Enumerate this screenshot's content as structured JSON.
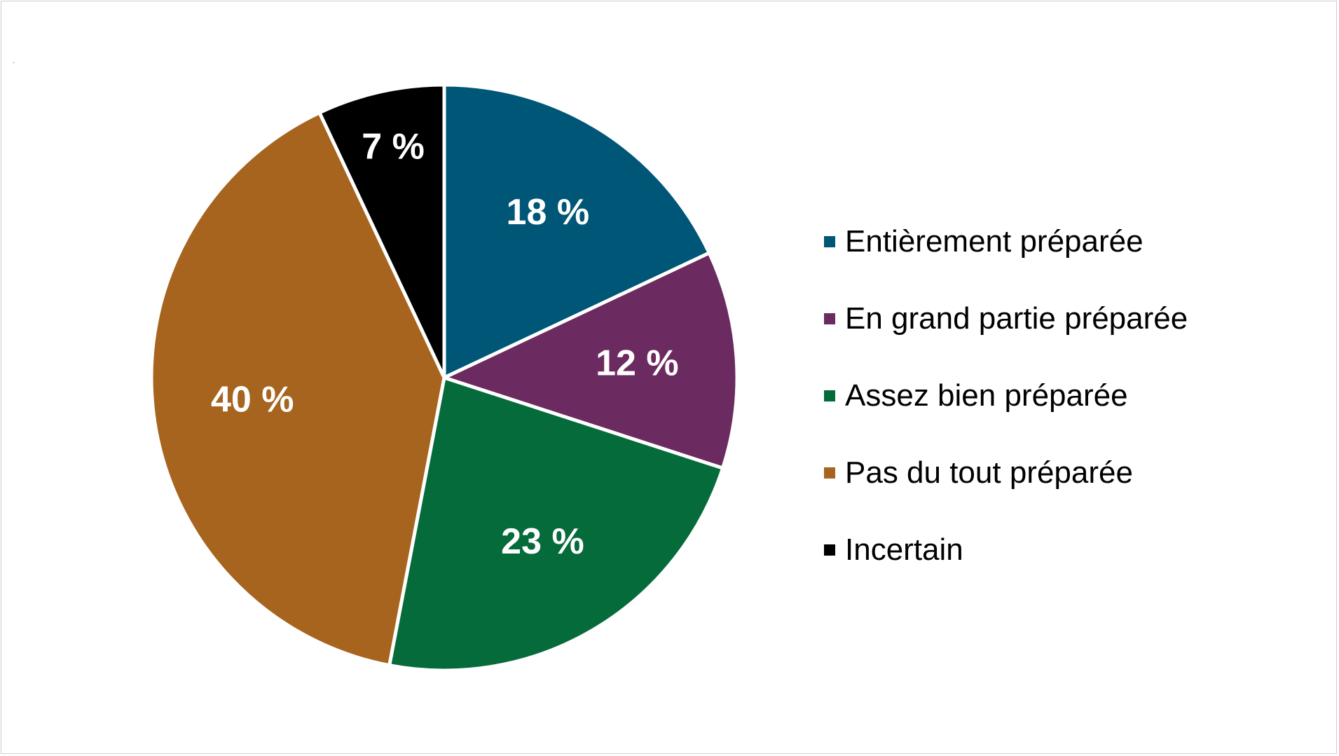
{
  "chart_data": {
    "type": "pie",
    "title": "",
    "series": [
      {
        "name": "Entièrement préparée",
        "value": 18,
        "label": "18 %",
        "color": "#005677"
      },
      {
        "name": "En grand partie préparée",
        "value": 12,
        "label": "12 %",
        "color": "#6b2b60"
      },
      {
        "name": "Assez bien préparée",
        "value": 23,
        "label": "23 %",
        "color": "#056b3a"
      },
      {
        "name": "Pas du tout préparée",
        "value": 40,
        "label": "40 %",
        "color": "#a6641e"
      },
      {
        "name": "Incertain",
        "value": 7,
        "label": "7 %",
        "color": "#000000"
      }
    ],
    "legend_position": "right",
    "start_angle": "top",
    "direction": "clockwise"
  },
  "corner_mark": "."
}
